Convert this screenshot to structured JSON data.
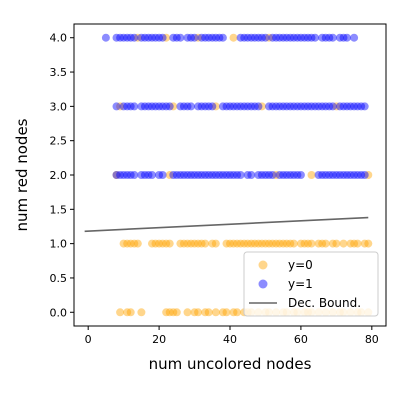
{
  "chart_data": {
    "type": "scatter",
    "title": "",
    "xlabel": "num uncolored nodes",
    "ylabel": "num red nodes",
    "xlim": [
      -4.0,
      84.0
    ],
    "ylim": [
      -0.2,
      4.2
    ],
    "xticks": [
      0,
      20,
      40,
      60,
      80
    ],
    "xtick_labels": [
      "0",
      "20",
      "40",
      "60",
      "80"
    ],
    "yticks": [
      0.0,
      0.5,
      1.0,
      1.5,
      2.0,
      2.5,
      3.0,
      3.5,
      4.0
    ],
    "ytick_labels": [
      "0.0",
      "0.5",
      "1.0",
      "1.5",
      "2.0",
      "2.5",
      "3.0",
      "3.5",
      "4.0"
    ],
    "grid": false,
    "legend_position": "lower-right",
    "series": [
      {
        "name": "y=0",
        "color": "#FFA500",
        "opacity": 0.45,
        "points": [
          [
            9,
            0
          ],
          [
            11,
            0
          ],
          [
            12,
            0
          ],
          [
            15,
            0
          ],
          [
            22,
            0
          ],
          [
            23,
            0
          ],
          [
            24,
            0
          ],
          [
            25,
            0
          ],
          [
            28,
            0
          ],
          [
            30,
            0
          ],
          [
            31,
            0
          ],
          [
            33,
            0
          ],
          [
            34,
            0
          ],
          [
            36,
            0
          ],
          [
            38,
            0
          ],
          [
            39,
            0
          ],
          [
            41,
            0
          ],
          [
            42,
            0
          ],
          [
            44,
            0
          ],
          [
            45,
            0
          ],
          [
            46,
            0
          ],
          [
            48,
            0
          ],
          [
            50,
            0
          ],
          [
            51,
            0
          ],
          [
            53,
            0
          ],
          [
            55,
            0
          ],
          [
            56,
            0
          ],
          [
            58,
            0
          ],
          [
            59,
            0
          ],
          [
            61,
            0
          ],
          [
            62,
            0
          ],
          [
            63,
            0
          ],
          [
            65,
            0
          ],
          [
            67,
            0
          ],
          [
            69,
            0
          ],
          [
            71,
            0
          ],
          [
            72,
            0
          ],
          [
            74,
            0
          ],
          [
            76,
            0
          ],
          [
            77,
            0
          ],
          [
            79,
            0
          ],
          [
            10,
            1
          ],
          [
            11,
            1
          ],
          [
            12,
            1
          ],
          [
            13,
            1
          ],
          [
            14,
            1
          ],
          [
            18,
            1
          ],
          [
            19,
            1
          ],
          [
            20,
            1
          ],
          [
            21,
            1
          ],
          [
            22,
            1
          ],
          [
            23,
            1
          ],
          [
            26,
            1
          ],
          [
            27,
            1
          ],
          [
            28,
            1
          ],
          [
            29,
            1
          ],
          [
            30,
            1
          ],
          [
            31,
            1
          ],
          [
            32,
            1
          ],
          [
            33,
            1
          ],
          [
            35,
            1
          ],
          [
            36,
            1
          ],
          [
            39,
            1
          ],
          [
            40,
            1
          ],
          [
            41,
            1
          ],
          [
            42,
            1
          ],
          [
            43,
            1
          ],
          [
            44,
            1
          ],
          [
            45,
            1
          ],
          [
            46,
            1
          ],
          [
            47,
            1
          ],
          [
            48,
            1
          ],
          [
            49,
            1
          ],
          [
            50,
            1
          ],
          [
            51,
            1
          ],
          [
            52,
            1
          ],
          [
            53,
            1
          ],
          [
            54,
            1
          ],
          [
            55,
            1
          ],
          [
            56,
            1
          ],
          [
            57,
            1
          ],
          [
            58,
            1
          ],
          [
            60,
            1
          ],
          [
            61,
            1
          ],
          [
            62,
            1
          ],
          [
            63,
            1
          ],
          [
            65,
            1
          ],
          [
            66,
            1
          ],
          [
            67,
            1
          ],
          [
            69,
            1
          ],
          [
            70,
            1
          ],
          [
            72,
            1
          ],
          [
            74,
            1
          ],
          [
            75,
            1
          ],
          [
            76,
            1
          ],
          [
            78,
            1
          ],
          [
            79,
            1
          ],
          [
            8,
            2
          ],
          [
            23,
            2
          ],
          [
            53,
            2
          ],
          [
            63,
            2
          ],
          [
            79,
            2
          ],
          [
            9,
            3
          ],
          [
            24,
            3
          ],
          [
            36,
            3
          ],
          [
            49,
            3
          ],
          [
            70,
            3
          ],
          [
            14,
            4
          ],
          [
            22,
            4
          ],
          [
            31,
            4
          ],
          [
            41,
            4
          ],
          [
            51,
            4
          ]
        ]
      },
      {
        "name": "y=1",
        "color": "#0000FF",
        "opacity": 0.45,
        "points": [
          [
            8,
            2
          ],
          [
            9,
            2
          ],
          [
            10,
            2
          ],
          [
            11,
            2
          ],
          [
            12,
            2
          ],
          [
            13,
            2
          ],
          [
            15,
            2
          ],
          [
            16,
            2
          ],
          [
            17,
            2
          ],
          [
            18,
            2
          ],
          [
            20,
            2
          ],
          [
            21,
            2
          ],
          [
            24,
            2
          ],
          [
            25,
            2
          ],
          [
            26,
            2
          ],
          [
            27,
            2
          ],
          [
            28,
            2
          ],
          [
            29,
            2
          ],
          [
            30,
            2
          ],
          [
            31,
            2
          ],
          [
            32,
            2
          ],
          [
            33,
            2
          ],
          [
            34,
            2
          ],
          [
            35,
            2
          ],
          [
            36,
            2
          ],
          [
            37,
            2
          ],
          [
            38,
            2
          ],
          [
            39,
            2
          ],
          [
            40,
            2
          ],
          [
            41,
            2
          ],
          [
            42,
            2
          ],
          [
            43,
            2
          ],
          [
            45,
            2
          ],
          [
            46,
            2
          ],
          [
            48,
            2
          ],
          [
            49,
            2
          ],
          [
            50,
            2
          ],
          [
            51,
            2
          ],
          [
            52,
            2
          ],
          [
            54,
            2
          ],
          [
            55,
            2
          ],
          [
            56,
            2
          ],
          [
            57,
            2
          ],
          [
            58,
            2
          ],
          [
            59,
            2
          ],
          [
            60,
            2
          ],
          [
            65,
            2
          ],
          [
            66,
            2
          ],
          [
            67,
            2
          ],
          [
            68,
            2
          ],
          [
            69,
            2
          ],
          [
            70,
            2
          ],
          [
            71,
            2
          ],
          [
            72,
            2
          ],
          [
            73,
            2
          ],
          [
            74,
            2
          ],
          [
            75,
            2
          ],
          [
            76,
            2
          ],
          [
            77,
            2
          ],
          [
            78,
            2
          ],
          [
            8,
            3
          ],
          [
            10,
            3
          ],
          [
            11,
            3
          ],
          [
            12,
            3
          ],
          [
            13,
            3
          ],
          [
            15,
            3
          ],
          [
            16,
            3
          ],
          [
            17,
            3
          ],
          [
            18,
            3
          ],
          [
            19,
            3
          ],
          [
            20,
            3
          ],
          [
            21,
            3
          ],
          [
            22,
            3
          ],
          [
            23,
            3
          ],
          [
            26,
            3
          ],
          [
            27,
            3
          ],
          [
            28,
            3
          ],
          [
            29,
            3
          ],
          [
            31,
            3
          ],
          [
            32,
            3
          ],
          [
            33,
            3
          ],
          [
            34,
            3
          ],
          [
            35,
            3
          ],
          [
            38,
            3
          ],
          [
            39,
            3
          ],
          [
            40,
            3
          ],
          [
            41,
            3
          ],
          [
            42,
            3
          ],
          [
            43,
            3
          ],
          [
            44,
            3
          ],
          [
            45,
            3
          ],
          [
            46,
            3
          ],
          [
            47,
            3
          ],
          [
            48,
            3
          ],
          [
            51,
            3
          ],
          [
            52,
            3
          ],
          [
            53,
            3
          ],
          [
            54,
            3
          ],
          [
            55,
            3
          ],
          [
            56,
            3
          ],
          [
            57,
            3
          ],
          [
            58,
            3
          ],
          [
            59,
            3
          ],
          [
            60,
            3
          ],
          [
            61,
            3
          ],
          [
            62,
            3
          ],
          [
            63,
            3
          ],
          [
            64,
            3
          ],
          [
            65,
            3
          ],
          [
            66,
            3
          ],
          [
            67,
            3
          ],
          [
            68,
            3
          ],
          [
            69,
            3
          ],
          [
            71,
            3
          ],
          [
            72,
            3
          ],
          [
            73,
            3
          ],
          [
            74,
            3
          ],
          [
            75,
            3
          ],
          [
            76,
            3
          ],
          [
            77,
            3
          ],
          [
            78,
            3
          ],
          [
            5,
            4
          ],
          [
            8,
            4
          ],
          [
            9,
            4
          ],
          [
            10,
            4
          ],
          [
            11,
            4
          ],
          [
            12,
            4
          ],
          [
            13,
            4
          ],
          [
            15,
            4
          ],
          [
            16,
            4
          ],
          [
            17,
            4
          ],
          [
            18,
            4
          ],
          [
            19,
            4
          ],
          [
            20,
            4
          ],
          [
            21,
            4
          ],
          [
            24,
            4
          ],
          [
            25,
            4
          ],
          [
            26,
            4
          ],
          [
            28,
            4
          ],
          [
            29,
            4
          ],
          [
            30,
            4
          ],
          [
            32,
            4
          ],
          [
            33,
            4
          ],
          [
            34,
            4
          ],
          [
            35,
            4
          ],
          [
            36,
            4
          ],
          [
            37,
            4
          ],
          [
            38,
            4
          ],
          [
            43,
            4
          ],
          [
            44,
            4
          ],
          [
            45,
            4
          ],
          [
            46,
            4
          ],
          [
            47,
            4
          ],
          [
            48,
            4
          ],
          [
            49,
            4
          ],
          [
            50,
            4
          ],
          [
            52,
            4
          ],
          [
            53,
            4
          ],
          [
            54,
            4
          ],
          [
            55,
            4
          ],
          [
            56,
            4
          ],
          [
            57,
            4
          ],
          [
            58,
            4
          ],
          [
            59,
            4
          ],
          [
            60,
            4
          ],
          [
            61,
            4
          ],
          [
            62,
            4
          ],
          [
            63,
            4
          ],
          [
            64,
            4
          ],
          [
            66,
            4
          ],
          [
            67,
            4
          ],
          [
            68,
            4
          ],
          [
            69,
            4
          ],
          [
            71,
            4
          ],
          [
            72,
            4
          ],
          [
            73,
            4
          ],
          [
            75,
            4
          ]
        ]
      },
      {
        "name": "Dec. Bound.",
        "type": "line",
        "color": "#666666",
        "x": [
          -1,
          79
        ],
        "y": [
          1.18,
          1.38
        ]
      }
    ]
  }
}
